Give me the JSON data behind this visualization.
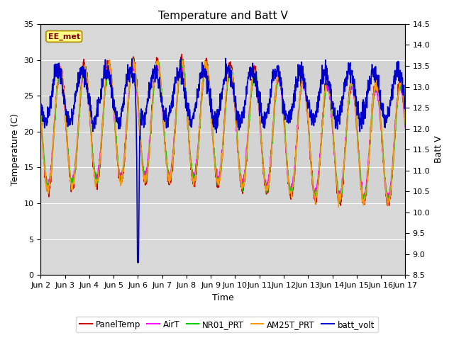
{
  "title": "Temperature and Batt V",
  "xlabel": "Time",
  "ylabel_left": "Temperature (C)",
  "ylabel_right": "Batt V",
  "ylim_left": [
    0,
    35
  ],
  "ylim_right": [
    8.5,
    14.5
  ],
  "annotation": "EE_met",
  "background_color": "#d8d8d8",
  "band_color": "#c8c8c8",
  "legend_entries": [
    "PanelTemp",
    "AirT",
    "NR01_PRT",
    "AM25T_PRT",
    "batt_volt"
  ],
  "line_colors": [
    "#cc0000",
    "#ff00ff",
    "#00cc00",
    "#ff9900",
    "#0000cc"
  ],
  "xtick_labels": [
    "Jun 2",
    "Jun 3",
    "Jun 4",
    "Jun 5",
    "Jun 6",
    "Jun 7",
    "Jun 8",
    "Jun 9",
    "Jun 10",
    "Jun 11",
    "Jun 12",
    "Jun 13",
    "Jun 14",
    "Jun 15",
    "Jun 16",
    "Jun 17"
  ],
  "yticks_left": [
    0,
    5,
    10,
    15,
    20,
    25,
    30,
    35
  ],
  "yticks_right": [
    8.5,
    9.0,
    9.5,
    10.0,
    10.5,
    11.0,
    11.5,
    12.0,
    12.5,
    13.0,
    13.5,
    14.0,
    14.5
  ],
  "n_days": 15,
  "seed": 12345
}
